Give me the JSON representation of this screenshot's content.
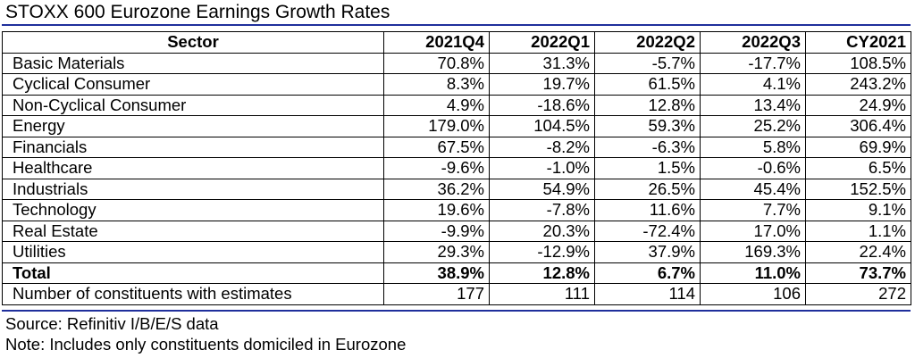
{
  "title": "STOXX 600 Eurozone Earnings Growth Rates",
  "colors": {
    "rule": "#1f2f9c",
    "border": "#000000",
    "text": "#000000"
  },
  "table": {
    "columns": [
      "Sector",
      "2021Q4",
      "2022Q1",
      "2022Q2",
      "2022Q3",
      "CY2021"
    ],
    "rows": [
      {
        "sector": "Basic Materials",
        "values": [
          "70.8%",
          "31.3%",
          "-5.7%",
          "-17.7%",
          "108.5%"
        ]
      },
      {
        "sector": "Cyclical Consumer",
        "values": [
          "8.3%",
          "19.7%",
          "61.5%",
          "4.1%",
          "243.2%"
        ]
      },
      {
        "sector": "Non-Cyclical Consumer",
        "values": [
          "4.9%",
          "-18.6%",
          "12.8%",
          "13.4%",
          "24.9%"
        ]
      },
      {
        "sector": "Energy",
        "values": [
          "179.0%",
          "104.5%",
          "59.3%",
          "25.2%",
          "306.4%"
        ]
      },
      {
        "sector": "Financials",
        "values": [
          "67.5%",
          "-8.2%",
          "-6.3%",
          "5.8%",
          "69.9%"
        ]
      },
      {
        "sector": "Healthcare",
        "values": [
          "-9.6%",
          "-1.0%",
          "1.5%",
          "-0.6%",
          "6.5%"
        ]
      },
      {
        "sector": "Industrials",
        "values": [
          "36.2%",
          "54.9%",
          "26.5%",
          "45.4%",
          "152.5%"
        ]
      },
      {
        "sector": "Technology",
        "values": [
          "19.6%",
          "-7.8%",
          "11.6%",
          "7.7%",
          "9.1%"
        ]
      },
      {
        "sector": "Real Estate",
        "values": [
          "-9.9%",
          "20.3%",
          "-72.4%",
          "17.0%",
          "1.1%"
        ]
      },
      {
        "sector": "Utilities",
        "values": [
          "29.3%",
          "-12.9%",
          "37.9%",
          "169.3%",
          "22.4%"
        ]
      }
    ],
    "total": {
      "sector": "Total",
      "values": [
        "38.9%",
        "12.8%",
        "6.7%",
        "11.0%",
        "73.7%"
      ]
    },
    "constituents": {
      "sector": "Number of constituents with estimates",
      "values": [
        "177",
        "111",
        "114",
        "106",
        "272"
      ]
    }
  },
  "footer": {
    "source": "Source: Refinitiv I/B/E/S data",
    "note": "Note: Includes only constituents domiciled in Eurozone"
  }
}
